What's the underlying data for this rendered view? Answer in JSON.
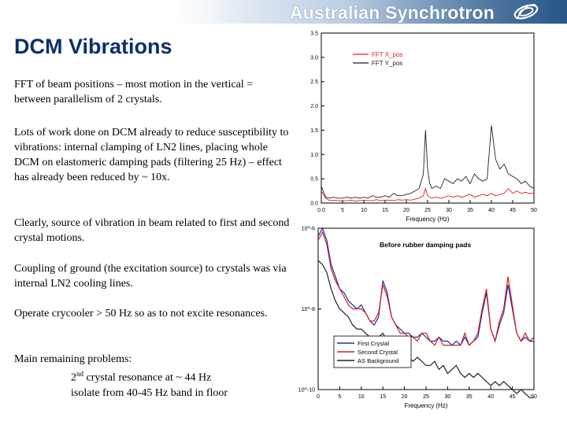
{
  "header": {
    "brand": "Australian Synchrotron"
  },
  "slide": {
    "title": "DCM Vibrations",
    "p1": "FFT of beam positions – most motion in the vertical = between parallelism of 2 crystals.",
    "p2": "Lots of work done on DCM already to reduce susceptibility to vibrations:  internal clamping of LN2 lines, placing whole DCM on elastomeric damping pads (filtering 25 Hz) – effect has already been reduced by ~ 10x.",
    "p3": "Clearly, source of vibration in beam related to first and second crystal motions.",
    "p4": "Coupling of ground (the excitation source) to crystals was via internal LN2 cooling lines.",
    "p5": "Operate crycooler > 50 Hz so as to not excite resonances.",
    "p6_heading": "Main remaining problems:",
    "p6_line1_pre": "2",
    "p6_line1_sup": "nd",
    "p6_line1_post": " crystal resonance at ~ 44 Hz",
    "p6_line2": "isolate from 40-45 Hz band in floor"
  },
  "chart_data": [
    {
      "type": "line",
      "xlabel": "Frequency (Hz)",
      "ylabel": "",
      "xlim": [
        0,
        50
      ],
      "ylim": [
        0,
        3.5
      ],
      "xticks": [
        "0.0",
        "5",
        "10",
        "15",
        "20",
        "25",
        "30",
        "35",
        "40",
        "45",
        "50"
      ],
      "yticks": [
        "0.0",
        "0.5",
        "1.0",
        "1.5",
        "2.0",
        "2.5",
        "3.0",
        "3.5"
      ],
      "legend_position": "top-left",
      "colors": {
        "FFT X_pos": "#e02020",
        "FFT Y_pos": "#222222"
      },
      "series": [
        {
          "name": "FFT X_pos",
          "x": [
            0,
            1,
            2,
            3,
            4,
            5,
            6,
            7,
            8,
            9,
            10,
            11,
            12,
            13,
            14,
            15,
            16,
            17,
            18,
            19,
            20,
            21,
            22,
            23,
            24,
            24.5,
            25,
            25.5,
            26,
            27,
            28,
            29,
            30,
            31,
            32,
            33,
            34,
            35,
            36,
            37,
            38,
            39,
            40,
            41,
            42,
            43,
            44,
            45,
            46,
            47,
            48,
            49,
            50
          ],
          "y": [
            0.25,
            0.1,
            0.05,
            0.06,
            0.05,
            0.04,
            0.05,
            0.06,
            0.04,
            0.05,
            0.06,
            0.05,
            0.05,
            0.07,
            0.05,
            0.06,
            0.06,
            0.05,
            0.07,
            0.06,
            0.07,
            0.06,
            0.08,
            0.1,
            0.15,
            0.3,
            0.15,
            0.12,
            0.1,
            0.12,
            0.1,
            0.12,
            0.15,
            0.12,
            0.15,
            0.12,
            0.15,
            0.18,
            0.12,
            0.15,
            0.18,
            0.15,
            0.2,
            0.15,
            0.18,
            0.2,
            0.3,
            0.2,
            0.25,
            0.2,
            0.22,
            0.2,
            0.2
          ]
        },
        {
          "name": "FFT Y_pos",
          "x": [
            0,
            1,
            2,
            3,
            4,
            5,
            6,
            7,
            8,
            9,
            10,
            11,
            12,
            13,
            14,
            15,
            16,
            17,
            18,
            19,
            20,
            21,
            22,
            23,
            24,
            24.5,
            25,
            25.5,
            26,
            27,
            28,
            29,
            30,
            31,
            32,
            33,
            34,
            35,
            36,
            37,
            38,
            39,
            40,
            41,
            42,
            43,
            44,
            45,
            46,
            47,
            48,
            49,
            50
          ],
          "y": [
            0.35,
            0.12,
            0.1,
            0.12,
            0.1,
            0.1,
            0.12,
            0.1,
            0.12,
            0.1,
            0.12,
            0.1,
            0.15,
            0.12,
            0.12,
            0.15,
            0.12,
            0.2,
            0.15,
            0.15,
            0.18,
            0.2,
            0.25,
            0.3,
            0.6,
            1.5,
            0.7,
            0.4,
            0.3,
            0.35,
            0.3,
            0.5,
            0.45,
            0.4,
            0.5,
            0.45,
            0.55,
            0.4,
            0.6,
            0.5,
            0.45,
            0.5,
            1.6,
            0.9,
            0.7,
            0.8,
            0.6,
            0.55,
            0.5,
            0.4,
            0.45,
            0.35,
            0.3
          ]
        }
      ]
    },
    {
      "type": "line",
      "annotation": "Before rubber damping pads",
      "xlabel": "Frequency (Hz)",
      "ylabel": "",
      "scale_y": "log",
      "xlim": [
        0,
        50
      ],
      "ylim": [
        -10,
        -6
      ],
      "xticks": [
        "0",
        "5",
        "10",
        "15",
        "20",
        "25",
        "30",
        "35",
        "40",
        "45",
        "50"
      ],
      "yticks": [
        "10^-6",
        "10^-8",
        "10^-10"
      ],
      "legend_position": "bottom-left",
      "colors": {
        "First Crystal": "#1a2fa8",
        "Second Crystal": "#d42020",
        "AS Background": "#222222"
      },
      "series": [
        {
          "name": "First Crystal",
          "x": [
            0,
            1,
            2,
            3,
            4,
            5,
            6,
            7,
            8,
            9,
            10,
            11,
            12,
            13,
            14,
            15,
            16,
            17,
            18,
            19,
            20,
            21,
            22,
            23,
            24,
            25,
            26,
            27,
            28,
            29,
            30,
            31,
            32,
            33,
            34,
            35,
            36,
            37,
            38,
            39,
            40,
            41,
            42,
            43,
            44,
            45,
            46,
            47,
            48,
            49,
            50
          ],
          "y": [
            -6.2,
            -6.0,
            -6.3,
            -6.9,
            -7.2,
            -7.5,
            -7.6,
            -7.8,
            -7.9,
            -8.0,
            -7.9,
            -8.1,
            -8.3,
            -8.4,
            -8.2,
            -7.3,
            -7.6,
            -8.2,
            -8.4,
            -8.5,
            -8.6,
            -8.6,
            -8.7,
            -8.7,
            -8.6,
            -8.7,
            -8.8,
            -8.8,
            -8.7,
            -8.8,
            -8.8,
            -8.9,
            -8.8,
            -8.9,
            -8.7,
            -8.9,
            -8.8,
            -8.7,
            -8.1,
            -7.6,
            -8.5,
            -8.8,
            -8.4,
            -8.1,
            -7.4,
            -8.0,
            -8.6,
            -8.8,
            -8.7,
            -8.8,
            -8.8
          ]
        },
        {
          "name": "Second Crystal",
          "x": [
            0,
            1,
            2,
            3,
            4,
            5,
            6,
            7,
            8,
            9,
            10,
            11,
            12,
            13,
            14,
            15,
            16,
            17,
            18,
            19,
            20,
            21,
            22,
            23,
            24,
            25,
            26,
            27,
            28,
            29,
            30,
            31,
            32,
            33,
            34,
            35,
            36,
            37,
            38,
            39,
            40,
            41,
            42,
            43,
            44,
            45,
            46,
            47,
            48,
            49,
            50
          ],
          "y": [
            -6.3,
            -6.1,
            -6.4,
            -7.0,
            -7.3,
            -7.5,
            -7.7,
            -7.9,
            -8.0,
            -8.0,
            -8.0,
            -8.1,
            -8.3,
            -8.3,
            -8.1,
            -7.4,
            -7.7,
            -8.2,
            -8.4,
            -8.6,
            -8.6,
            -8.7,
            -8.7,
            -8.8,
            -8.6,
            -8.6,
            -8.8,
            -8.9,
            -8.7,
            -8.9,
            -8.9,
            -8.9,
            -8.9,
            -8.9,
            -8.6,
            -8.9,
            -8.8,
            -8.6,
            -8.0,
            -7.5,
            -8.5,
            -8.8,
            -8.3,
            -8.0,
            -7.2,
            -7.9,
            -8.6,
            -8.8,
            -8.6,
            -8.8,
            -8.7
          ]
        },
        {
          "name": "AS Background",
          "x": [
            0,
            1,
            2,
            3,
            4,
            5,
            6,
            7,
            8,
            9,
            10,
            11,
            12,
            13,
            14,
            15,
            16,
            17,
            18,
            19,
            20,
            21,
            22,
            23,
            24,
            25,
            26,
            27,
            28,
            29,
            30,
            31,
            32,
            33,
            34,
            35,
            36,
            37,
            38,
            39,
            40,
            41,
            42,
            43,
            44,
            45,
            46,
            47,
            48,
            49,
            50
          ],
          "y": [
            -6.8,
            -6.9,
            -7.1,
            -7.5,
            -7.8,
            -8.0,
            -8.1,
            -8.2,
            -8.4,
            -8.5,
            -8.5,
            -8.6,
            -8.7,
            -8.8,
            -8.7,
            -8.6,
            -8.8,
            -9.0,
            -9.1,
            -9.1,
            -9.2,
            -9.2,
            -9.3,
            -9.2,
            -9.3,
            -9.4,
            -9.4,
            -9.3,
            -9.5,
            -9.4,
            -9.6,
            -9.5,
            -9.4,
            -9.6,
            -9.7,
            -9.6,
            -9.7,
            -9.6,
            -9.7,
            -9.8,
            -9.9,
            -9.8,
            -9.9,
            -9.8,
            -9.9,
            -10.0,
            -10.1,
            -10.0,
            -10.1,
            -10.2,
            -10.2
          ]
        }
      ]
    }
  ]
}
